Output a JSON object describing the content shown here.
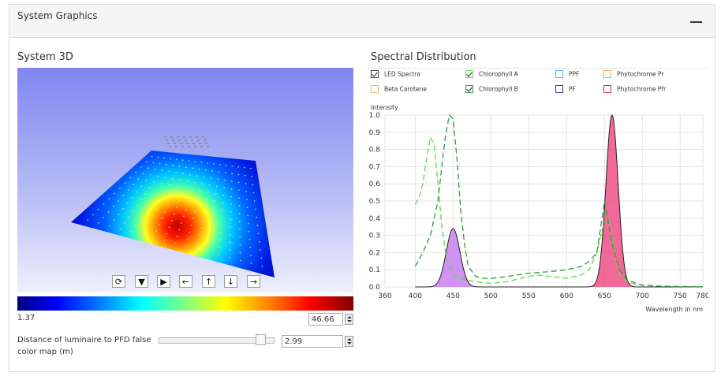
{
  "panel": {
    "title": "System Graphics",
    "collapse_icon": "minus-icon"
  },
  "system3d": {
    "title": "System 3D",
    "controls": [
      {
        "name": "reset-view-button",
        "icon": "rotate-icon",
        "glyph": "⟳"
      },
      {
        "name": "tilt-down-button",
        "icon": "triangle-down-icon",
        "glyph": "▼"
      },
      {
        "name": "rotate-right-button",
        "icon": "triangle-right-icon",
        "glyph": "▶"
      },
      {
        "name": "pan-left-button",
        "icon": "arrow-left-icon",
        "glyph": "←"
      },
      {
        "name": "pan-up-button",
        "icon": "arrow-up-icon",
        "glyph": "↑"
      },
      {
        "name": "pan-down-button",
        "icon": "arrow-down-icon",
        "glyph": "↓"
      },
      {
        "name": "pan-right-button",
        "icon": "arrow-right-icon",
        "glyph": "→"
      }
    ],
    "colorbar": {
      "min": "1.37",
      "max": "46.66"
    },
    "distance": {
      "label": "Distance of luminaire to PFD false color map (m)",
      "value": "2.99",
      "slider_fraction": 0.92
    }
  },
  "spectral": {
    "title": "Spectral Distribution",
    "legend": [
      {
        "label": "LED Spectra",
        "checked": true,
        "color": "#444444"
      },
      {
        "label": "Chlorophyll A",
        "checked": true,
        "color": "#66dd55"
      },
      {
        "label": "PPF",
        "checked": false,
        "color": "#6fa8e8"
      },
      {
        "label": "Phytochrome Pr",
        "checked": false,
        "color": "#f0a080"
      },
      {
        "label": "Beta Carotene",
        "checked": false,
        "color": "#f0b060"
      },
      {
        "label": "Chlorophyll B",
        "checked": true,
        "color": "#339944"
      },
      {
        "label": "PF",
        "checked": false,
        "color": "#333388"
      },
      {
        "label": "Phytochrome Pfr",
        "checked": false,
        "color": "#cc3344"
      }
    ]
  },
  "chart_data": {
    "type": "line",
    "ylabel": "Intensity",
    "xlabel": "Wavelength in nm",
    "xlim": [
      360,
      780
    ],
    "ylim": [
      0,
      1.0
    ],
    "xticks": [
      360,
      400,
      450,
      500,
      550,
      600,
      650,
      700,
      750,
      780
    ],
    "yticks": [
      0,
      0.1,
      0.2,
      0.3,
      0.4,
      0.5,
      0.6,
      0.7,
      0.8,
      0.9,
      1.0
    ],
    "grid": true,
    "led_peaks": [
      {
        "center": 450,
        "height": 0.34,
        "width": 9,
        "fill": "#c780f0"
      },
      {
        "center": 660,
        "height": 1.0,
        "width": 8,
        "fill": "#ee4f86"
      }
    ],
    "series": [
      {
        "name": "Chlorophyll A",
        "color": "#55dd44",
        "x": [
          400,
          405,
          410,
          415,
          420,
          425,
          430,
          435,
          440,
          445,
          450,
          455,
          460,
          470,
          480,
          490,
          500,
          520,
          540,
          560,
          580,
          600,
          620,
          630,
          640,
          645,
          650,
          655,
          660,
          665,
          670,
          680,
          690,
          700,
          720,
          750,
          780
        ],
        "y": [
          0.48,
          0.52,
          0.6,
          0.75,
          0.87,
          0.83,
          0.6,
          0.36,
          0.2,
          0.12,
          0.08,
          0.06,
          0.05,
          0.04,
          0.03,
          0.025,
          0.02,
          0.03,
          0.05,
          0.07,
          0.06,
          0.05,
          0.07,
          0.1,
          0.2,
          0.3,
          0.38,
          0.4,
          0.3,
          0.15,
          0.07,
          0.03,
          0.015,
          0.01,
          0.005,
          0.003,
          0.002
        ]
      },
      {
        "name": "Chlorophyll B",
        "color": "#339944",
        "x": [
          400,
          410,
          420,
          430,
          435,
          440,
          445,
          450,
          455,
          460,
          465,
          470,
          480,
          490,
          500,
          520,
          550,
          580,
          600,
          620,
          630,
          640,
          645,
          650,
          655,
          660,
          670,
          680,
          700,
          720,
          750,
          780
        ],
        "y": [
          0.12,
          0.2,
          0.3,
          0.5,
          0.7,
          0.88,
          1.0,
          0.98,
          0.75,
          0.45,
          0.25,
          0.12,
          0.06,
          0.05,
          0.05,
          0.06,
          0.08,
          0.09,
          0.1,
          0.12,
          0.15,
          0.2,
          0.35,
          0.5,
          0.38,
          0.25,
          0.1,
          0.04,
          0.01,
          0.005,
          0.002,
          0.001
        ]
      }
    ]
  }
}
